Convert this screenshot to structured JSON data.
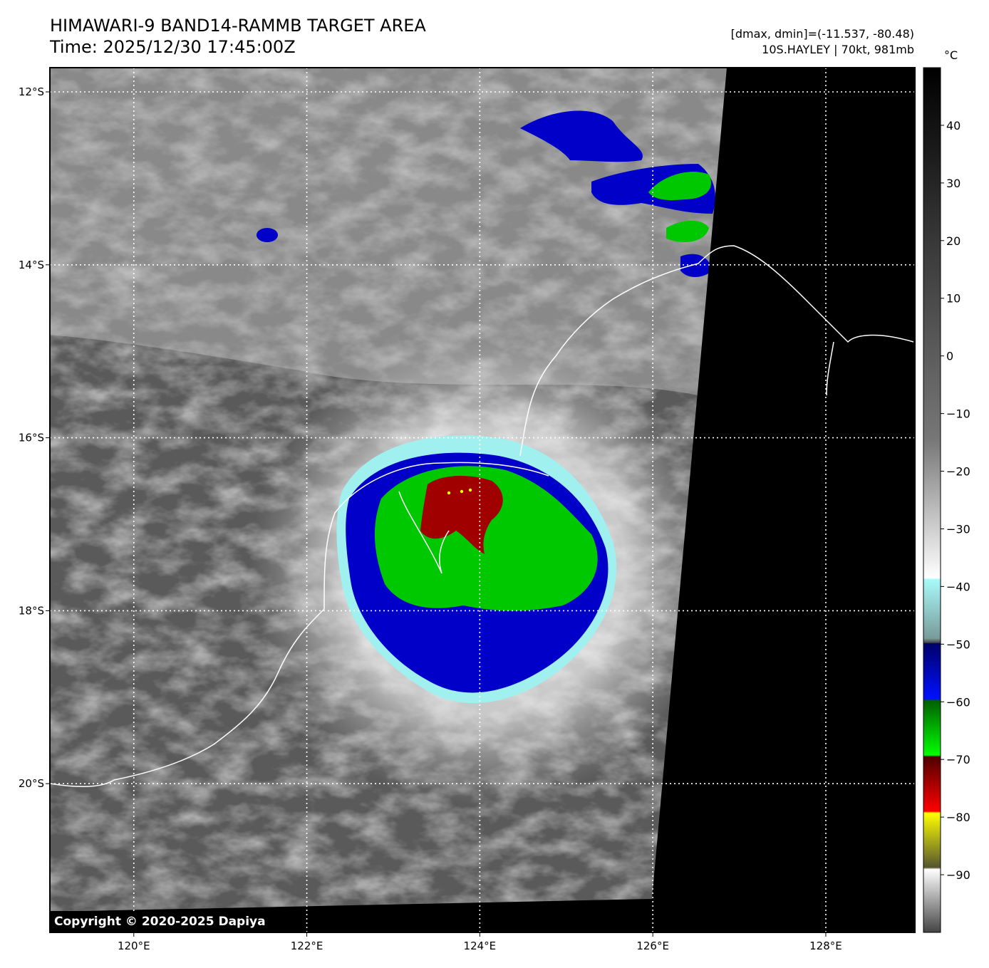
{
  "title_line1": "HIMAWARI-9 BAND14-RAMMB TARGET AREA",
  "title_line2": "Time: 2025/12/30 17:45:00Z",
  "dmax_dmin": "[dmax, dmin]=(-11.537, -80.48)",
  "storm_info": "10S.HAYLEY | 70kt, 981mb",
  "colorbar_unit": "°C",
  "copyright": "Copyright © 2020-2025 Dapiya",
  "map": {
    "lon_ticks": [
      {
        "value": 120,
        "label": "120°E"
      },
      {
        "value": 122,
        "label": "122°E"
      },
      {
        "value": 124,
        "label": "124°E"
      },
      {
        "value": 126,
        "label": "126°E"
      },
      {
        "value": 128,
        "label": "128°E"
      }
    ],
    "lat_ticks": [
      {
        "value": -12,
        "label": "12°S"
      },
      {
        "value": -14,
        "label": "14°S"
      },
      {
        "value": -16,
        "label": "16°S"
      },
      {
        "value": -18,
        "label": "18°S"
      },
      {
        "value": -20,
        "label": "20°S"
      }
    ],
    "lon_range": [
      119.03,
      129.03
    ],
    "lat_range": [
      -21.72,
      -11.72
    ]
  },
  "colorbar": {
    "range": [
      -100,
      50
    ],
    "ticks": [
      {
        "value": 40,
        "label": "40"
      },
      {
        "value": 30,
        "label": "30"
      },
      {
        "value": 20,
        "label": "20"
      },
      {
        "value": 10,
        "label": "10"
      },
      {
        "value": 0,
        "label": "0"
      },
      {
        "value": -10,
        "label": "−10"
      },
      {
        "value": -20,
        "label": "−20"
      },
      {
        "value": -30,
        "label": "−30"
      },
      {
        "value": -40,
        "label": "−40"
      },
      {
        "value": -50,
        "label": "−50"
      },
      {
        "value": -60,
        "label": "−60"
      },
      {
        "value": -70,
        "label": "−70"
      },
      {
        "value": -80,
        "label": "−80"
      },
      {
        "value": -90,
        "label": "−90"
      }
    ]
  },
  "colors": {
    "cold_blue": "#0000c8",
    "green": "#00c800",
    "red": "#a00000",
    "yellow": "#ffff00",
    "cyan": "#a0f0f0",
    "space": "#000000",
    "coastline": "#ffffff"
  }
}
